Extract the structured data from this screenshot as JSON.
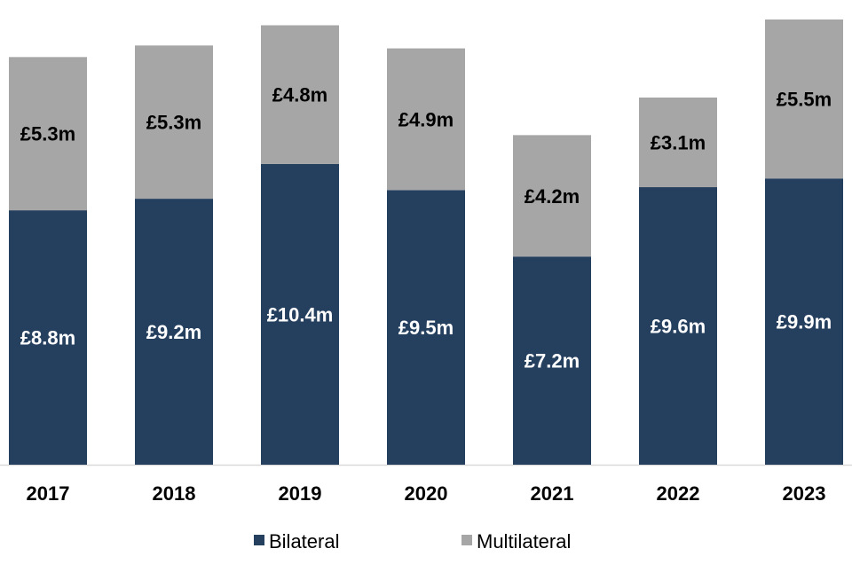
{
  "chart_data": {
    "type": "bar",
    "stacked": true,
    "categories": [
      "2017",
      "2018",
      "2019",
      "2020",
      "2021",
      "2022",
      "2023"
    ],
    "series": [
      {
        "name": "Bilateral",
        "color": "#253f5f",
        "values": [
          8.8,
          9.2,
          10.4,
          9.5,
          7.2,
          9.6,
          9.9
        ],
        "labels": [
          "£8.8m",
          "£9.2m",
          "£10.4m",
          "£9.5m",
          "£7.2m",
          "£9.6m",
          "£9.9m"
        ]
      },
      {
        "name": "Multilateral",
        "color": "#a6a6a6",
        "values": [
          5.3,
          5.3,
          4.8,
          4.9,
          4.2,
          3.1,
          5.5
        ],
        "labels": [
          "£5.3m",
          "£5.3m",
          "£4.8m",
          "£4.9m",
          "£4.2m",
          "£3.1m",
          "£5.5m"
        ]
      }
    ],
    "unit": "£m",
    "ylim": [
      0,
      16
    ],
    "y_axis_shown": false,
    "grid": false,
    "legend_position": "bottom"
  }
}
